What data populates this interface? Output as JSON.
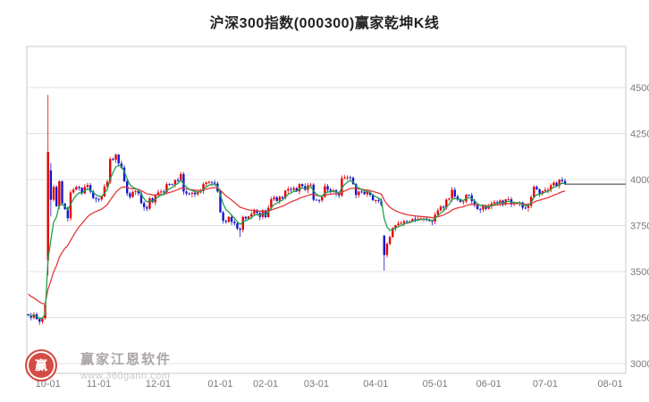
{
  "page": {
    "title": "沪深300指数(000300)赢家乾坤K线"
  },
  "watermark": {
    "brand": "赢家江恩软件",
    "url": "www.360gann.com",
    "logo_char": "赢",
    "logo_color": "#cf3a32"
  },
  "chart_data": {
    "type": "candlestick",
    "title": "沪深300指数(000300)赢家乾坤K线",
    "symbol": "000300",
    "index_name": "沪深300指数",
    "y_axis": {
      "side": "right",
      "min": 3000,
      "max": 4500,
      "tick_step": 250,
      "ticks": [
        4500,
        4250,
        4000,
        3750,
        3500,
        3250,
        3000
      ]
    },
    "x_ticks": [
      {
        "label": "10-01",
        "i": 7
      },
      {
        "label": "11-01",
        "i": 25
      },
      {
        "label": "12-01",
        "i": 46
      },
      {
        "label": "01-01",
        "i": 68
      },
      {
        "label": "02-01",
        "i": 84
      },
      {
        "label": "03-01",
        "i": 102
      },
      {
        "label": "04-01",
        "i": 123
      },
      {
        "label": "05-01",
        "i": 144
      },
      {
        "label": "06-01",
        "i": 163
      },
      {
        "label": "07-01",
        "i": 183
      },
      {
        "label": "08-01",
        "i": 206
      }
    ],
    "x_slots": 212,
    "last_price": 3975,
    "closes": [
      3262,
      3250,
      3268,
      3242,
      3228,
      3246,
      3320,
      4150,
      3890,
      3960,
      3855,
      3990,
      3870,
      3840,
      3790,
      3930,
      3945,
      3960,
      3955,
      3925,
      3960,
      3970,
      3935,
      3900,
      3895,
      3892,
      3908,
      3962,
      3988,
      4112,
      4108,
      4135,
      4088,
      4065,
      3990,
      3925,
      3905,
      3933,
      3938,
      3925,
      3872,
      3850,
      3842,
      3898,
      3876,
      3918,
      3930,
      3935,
      3932,
      3975,
      3974,
      3972,
      3997,
      3996,
      4030,
      3935,
      3924,
      3923,
      3928,
      3920,
      3929,
      3938,
      3975,
      3983,
      3988,
      3983,
      3978,
      3936,
      3822,
      3776,
      3770,
      3797,
      3770,
      3762,
      3733,
      3727,
      3797,
      3788,
      3800,
      3813,
      3830,
      3818,
      3797,
      3833,
      3796,
      3847,
      3893,
      3903,
      3884,
      3906,
      3899,
      3940,
      3948,
      3944,
      3953,
      3936,
      3975,
      3964,
      3944,
      3968,
      3972,
      3890,
      3889,
      3887,
      3906,
      3964,
      3945,
      3936,
      3942,
      3929,
      3914,
      4007,
      4011,
      4012,
      4010,
      3976,
      3916,
      3935,
      3933,
      3920,
      3933,
      3917,
      3888,
      3888,
      3885,
      3862,
      3590,
      3651,
      3688,
      3736,
      3752,
      3761,
      3763,
      3773,
      3772,
      3773,
      3785,
      3784,
      3787,
      3788,
      3788,
      3783,
      3776,
      3771,
      3809,
      3832,
      3853,
      3847,
      3891,
      3897,
      3944,
      3908,
      3890,
      3878,
      3881,
      3917,
      3914,
      3883,
      3861,
      3840,
      3837,
      3859,
      3841,
      3853,
      3870,
      3878,
      3874,
      3886,
      3866,
      3892,
      3893,
      3865,
      3871,
      3871,
      3876,
      3847,
      3845,
      3858,
      3905,
      3961,
      3947,
      3923,
      3937,
      3944,
      3944,
      3969,
      3983,
      3966,
      3999,
      3992,
      3975
    ],
    "special_candles": {
      "7": [
        3560,
        4460,
        3480,
        4150
      ],
      "8": [
        4050,
        4090,
        3800,
        3890
      ],
      "75": [
        3733,
        3741,
        3688,
        3727
      ],
      "126": [
        3695,
        3700,
        3505,
        3590
      ]
    },
    "ma_lines": [
      {
        "name": "ma-slow",
        "period": 20,
        "seed": 3390,
        "color": "#e23a3a"
      },
      {
        "name": "ma-fast",
        "period": 5,
        "seed": 3265,
        "color": "#1fa14d"
      }
    ],
    "colors": {
      "up": "#e60000",
      "down": "#1515cd",
      "grid": "#e3e3e3",
      "border": "#c9c9c9",
      "axis_text": "#7a7a7a",
      "price_line": "#333333"
    }
  }
}
